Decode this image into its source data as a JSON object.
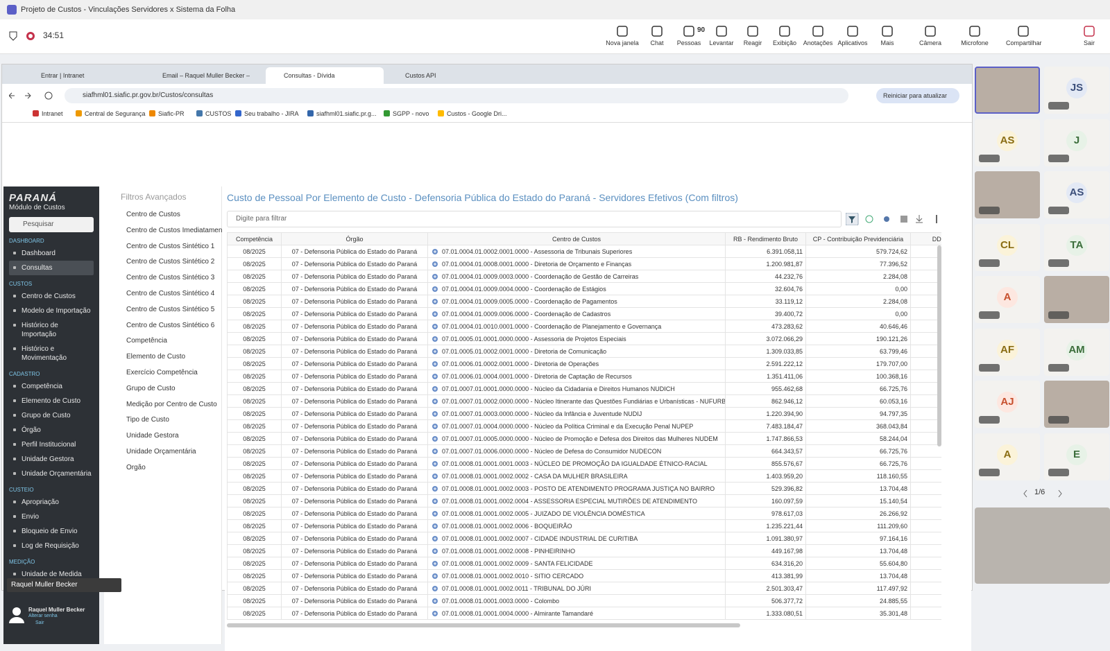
{
  "window": {
    "title": "Projeto de Custos - Vinculações Servidores x Sistema da Folha",
    "timer": "34:51",
    "people_count": "90",
    "toolbar": [
      "Nova janela",
      "Chat",
      "Pessoas",
      "Levantar",
      "Reagir",
      "Exibição",
      "Anotações",
      "Aplicativos",
      "Mais",
      "Câmera",
      "Microfone",
      "Compartilhar",
      "Sair"
    ]
  },
  "browser": {
    "tabs": [
      "Entrar | Intranet",
      "Email – Raquel Muller Becker –",
      "Consultas - Dívida",
      "Custos API"
    ],
    "url": "siafhml01.siafic.pr.gov.br/Custos/consultas",
    "update_button": "Reiniciar para atualizar",
    "bookmarks": [
      "Intranet",
      "Central de Segurança",
      "Siafic-PR",
      "CUSTOS",
      "Seu trabalho - JIRA",
      "siafhml01.siafic.pr.g...",
      "SGPP - novo",
      "Custos - Google Dri..."
    ]
  },
  "sidebar": {
    "logo": "PARANÁ",
    "module": "Módulo de Custos",
    "search": "Pesquisar",
    "sections": [
      {
        "title": "DASHBOARD",
        "items": [
          "Dashboard",
          "Consultas"
        ]
      },
      {
        "title": "CUSTOS",
        "items": [
          "Centro de Custos",
          "Modelo de Importação",
          "Histórico de Importação",
          "Histórico e Movimentação"
        ]
      },
      {
        "title": "CADASTRO",
        "items": [
          "Competência",
          "Elemento de Custo",
          "Grupo de Custo",
          "Órgão",
          "Perfil Institucional",
          "Unidade Gestora",
          "Unidade Orçamentária"
        ]
      },
      {
        "title": "CUSTEIO",
        "items": [
          "Apropriação",
          "Envio",
          "Bloqueio de Envio",
          "Log de Requisição"
        ]
      },
      {
        "title": "MEDIÇÃO",
        "items": [
          "Unidade de Medida"
        ]
      }
    ],
    "user": "Raquel Muller Becker",
    "change_password": "Alterar senha",
    "logout": "Sair"
  },
  "filters": {
    "title": "Filtros Avançados",
    "items": [
      "Centro de Custos",
      "Centro de Custos Imediatamen",
      "Centro de Custos Sintético 1",
      "Centro de Custos Sintético 2",
      "Centro de Custos Sintético 3",
      "Centro de Custos Sintético 4",
      "Centro de Custos Sintético 5",
      "Centro de Custos Sintético 6",
      "Competência",
      "Elemento de Custo",
      "Exercício Competência",
      "Grupo de Custo",
      "Medição por Centro de Custo",
      "Tipo de Custo",
      "Unidade Gestora",
      "Unidade Orçamentária",
      "Órgão"
    ]
  },
  "report": {
    "title": "Custo de Pessoal Por Elemento de Custo - Defensoria Pública do Estado do Paraná - Servidores Efetivos (Com filtros)",
    "filter_placeholder": "Digite para filtrar",
    "columns": [
      "Competência",
      "Órgão",
      "Centro de Custos",
      "RB - Rendimento Bruto",
      "CP - Contribuição Previdenciária",
      "DD - De"
    ],
    "rows": [
      [
        "08/2025",
        "07 - Defensoria Pública do Estado do Paraná",
        "07.01.0004.01.0002.0001.0000 - Assessoria de Tribunais Superiores",
        "6.391.058,11",
        "579.724,62"
      ],
      [
        "08/2025",
        "07 - Defensoria Pública do Estado do Paraná",
        "07.01.0004.01.0008.0001.0000 - Diretoria de Orçamento e Finanças",
        "1.200.981,87",
        "77.396,52"
      ],
      [
        "08/2025",
        "07 - Defensoria Pública do Estado do Paraná",
        "07.01.0004.01.0009.0003.0000 - Coordenação de Gestão de Carreiras",
        "44.232,76",
        "2.284,08"
      ],
      [
        "08/2025",
        "07 - Defensoria Pública do Estado do Paraná",
        "07.01.0004.01.0009.0004.0000 - Coordenação de Estágios",
        "32.604,76",
        "0,00"
      ],
      [
        "08/2025",
        "07 - Defensoria Pública do Estado do Paraná",
        "07.01.0004.01.0009.0005.0000 - Coordenação de Pagamentos",
        "33.119,12",
        "2.284,08"
      ],
      [
        "08/2025",
        "07 - Defensoria Pública do Estado do Paraná",
        "07.01.0004.01.0009.0006.0000 - Coordenação de Cadastros",
        "39.400,72",
        "0,00"
      ],
      [
        "08/2025",
        "07 - Defensoria Pública do Estado do Paraná",
        "07.01.0004.01.0010.0001.0000 - Coordenação de Planejamento e Governança",
        "473.283,62",
        "40.646,46"
      ],
      [
        "08/2025",
        "07 - Defensoria Pública do Estado do Paraná",
        "07.01.0005.01.0001.0000.0000 - Assessoria de Projetos Especiais",
        "3.072.066,29",
        "190.121,26"
      ],
      [
        "08/2025",
        "07 - Defensoria Pública do Estado do Paraná",
        "07.01.0005.01.0002.0001.0000 - Diretoria de Comunicação",
        "1.309.033,85",
        "63.799,46"
      ],
      [
        "08/2025",
        "07 - Defensoria Pública do Estado do Paraná",
        "07.01.0006.01.0002.0001.0000 - Diretoria de Operações",
        "2.591.222,12",
        "179.707,00"
      ],
      [
        "08/2025",
        "07 - Defensoria Pública do Estado do Paraná",
        "07.01.0006.01.0004.0001.0000 - Diretoria de Captação de Recursos",
        "1.351.411,06",
        "100.368,16"
      ],
      [
        "08/2025",
        "07 - Defensoria Pública do Estado do Paraná",
        "07.01.0007.01.0001.0000.0000 - Núcleo da Cidadania e Direitos Humanos NUDICH",
        "955.462,68",
        "66.725,76"
      ],
      [
        "08/2025",
        "07 - Defensoria Pública do Estado do Paraná",
        "07.01.0007.01.0002.0000.0000 - Núcleo Itinerante das Questões Fundiárias e Urbanísticas - NUFURB",
        "862.946,12",
        "60.053,16"
      ],
      [
        "08/2025",
        "07 - Defensoria Pública do Estado do Paraná",
        "07.01.0007.01.0003.0000.0000 - Núcleo da Infância e Juventude NUDIJ",
        "1.220.394,90",
        "94.797,35"
      ],
      [
        "08/2025",
        "07 - Defensoria Pública do Estado do Paraná",
        "07.01.0007.01.0004.0000.0000 - Núcleo da Política Criminal e da Execução Penal NUPEP",
        "7.483.184,47",
        "368.043,84"
      ],
      [
        "08/2025",
        "07 - Defensoria Pública do Estado do Paraná",
        "07.01.0007.01.0005.0000.0000 - Núcleo de Promoção e Defesa dos Direitos das Mulheres NUDEM",
        "1.747.866,53",
        "58.244,04"
      ],
      [
        "08/2025",
        "07 - Defensoria Pública do Estado do Paraná",
        "07.01.0007.01.0006.0000.0000 - Núcleo de Defesa do Consumidor NUDECON",
        "664.343,57",
        "66.725,76"
      ],
      [
        "08/2025",
        "07 - Defensoria Pública do Estado do Paraná",
        "07.01.0008.01.0001.0001.0003 - NÚCLEO DE PROMOÇÃO DA IGUALDADE ÉTNICO-RACIAL",
        "855.576,67",
        "66.725,76"
      ],
      [
        "08/2025",
        "07 - Defensoria Pública do Estado do Paraná",
        "07.01.0008.01.0001.0002.0002 - CASA DA MULHER BRASILEIRA",
        "1.403.959,20",
        "118.160,55"
      ],
      [
        "08/2025",
        "07 - Defensoria Pública do Estado do Paraná",
        "07.01.0008.01.0001.0002.0003 - POSTO DE ATENDIMENTO PROGRAMA JUSTIÇA NO BAIRRO",
        "529.396,82",
        "13.704,48"
      ],
      [
        "08/2025",
        "07 - Defensoria Pública do Estado do Paraná",
        "07.01.0008.01.0001.0002.0004 - ASSESSORIA ESPECIAL MUTIRÕES DE ATENDIMENTO",
        "160.097,59",
        "15.140,54"
      ],
      [
        "08/2025",
        "07 - Defensoria Pública do Estado do Paraná",
        "07.01.0008.01.0001.0002.0005 - JUIZADO DE VIOLÊNCIA DOMÉSTICA",
        "978.617,03",
        "26.266,92"
      ],
      [
        "08/2025",
        "07 - Defensoria Pública do Estado do Paraná",
        "07.01.0008.01.0001.0002.0006 - BOQUEIRÃO",
        "1.235.221,44",
        "111.209,60"
      ],
      [
        "08/2025",
        "07 - Defensoria Pública do Estado do Paraná",
        "07.01.0008.01.0001.0002.0007 - CIDADE INDUSTRIAL DE CURITIBA",
        "1.091.380,97",
        "97.164,16"
      ],
      [
        "08/2025",
        "07 - Defensoria Pública do Estado do Paraná",
        "07.01.0008.01.0001.0002.0008 - PINHEIRINHO",
        "449.167,98",
        "13.704,48"
      ],
      [
        "08/2025",
        "07 - Defensoria Pública do Estado do Paraná",
        "07.01.0008.01.0001.0002.0009 - SANTA FELICIDADE",
        "634.316,20",
        "55.604,80"
      ],
      [
        "08/2025",
        "07 - Defensoria Pública do Estado do Paraná",
        "07.01.0008.01.0001.0002.0010 - SITIO CERCADO",
        "413.381,99",
        "13.704,48"
      ],
      [
        "08/2025",
        "07 - Defensoria Pública do Estado do Paraná",
        "07.01.0008.01.0001.0002.0011 - TRIBUNAL DO JÚRI",
        "2.501.303,47",
        "117.497,92"
      ],
      [
        "08/2025",
        "07 - Defensoria Pública do Estado do Paraná",
        "07.01.0008.01.0001.0003.0000 - Colombo",
        "506.377,72",
        "24.885,55"
      ],
      [
        "08/2025",
        "07 - Defensoria Pública do Estado do Paraná",
        "07.01.0008.01.0001.0004.0000 - Almirante Tamandaré",
        "1.333.080,51",
        "35.301,48"
      ]
    ]
  },
  "participants": {
    "tiles": [
      null,
      "JS",
      "AS",
      "J",
      null,
      "AS",
      "CL",
      "TA",
      "A",
      null,
      "AF",
      "AM",
      "AJ",
      null,
      "A",
      "E"
    ],
    "page": "1/6",
    "presenter": "Raquel Muller Becker"
  }
}
